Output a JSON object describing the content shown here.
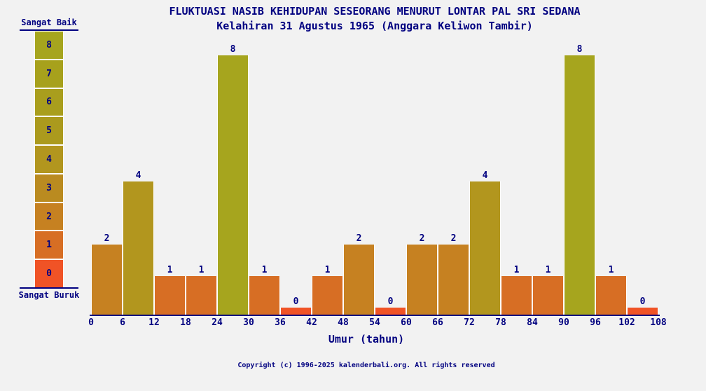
{
  "colors": {
    "background": "#f2f2f2",
    "text": "#000080",
    "axis": "#000080",
    "bar_gap": "#ffffff"
  },
  "header": {
    "title": "FLUKTUASI NASIB KEHIDUPAN SESEORANG MENURUT LONTAR PAL SRI SEDANA",
    "subtitle": "Kelahiran 31 Agustus 1965 (Anggara Keliwon Tambir)"
  },
  "legend": {
    "top_label": "Sangat Baik",
    "bottom_label": "Sangat Buruk",
    "levels": [
      8,
      7,
      6,
      5,
      4,
      3,
      2,
      1,
      0
    ]
  },
  "chart_data": {
    "type": "bar",
    "title": "FLUKTUASI NASIB KEHIDUPAN SESEORANG MENURUT LONTAR PAL SRI SEDANA",
    "subtitle": "Kelahiran 31 Agustus 1965 (Anggara Keliwon Tambir)",
    "xlabel": "Umur (tahun)",
    "ylabel": "",
    "ylim": [
      0,
      8
    ],
    "grid": false,
    "legend_position": "left",
    "x_ticks": [
      0,
      6,
      12,
      18,
      24,
      30,
      36,
      42,
      48,
      54,
      60,
      66,
      72,
      78,
      84,
      90,
      96,
      102,
      108
    ],
    "bin_width_years": 6,
    "categories": [
      "0-6",
      "6-12",
      "12-18",
      "18-24",
      "24-30",
      "30-36",
      "36-42",
      "42-48",
      "48-54",
      "54-60",
      "60-66",
      "66-72",
      "72-78",
      "78-84",
      "84-90",
      "90-96",
      "96-102",
      "102-108"
    ],
    "values": [
      2,
      4,
      1,
      1,
      8,
      1,
      0,
      1,
      2,
      0,
      2,
      2,
      4,
      1,
      1,
      8,
      1,
      0
    ],
    "bar_color_by_value": {
      "8": "#a6a51e",
      "7": "#a7a11c",
      "6": "#a99e1d",
      "5": "#ab9a1d",
      "4": "#b2961e",
      "3": "#ba8b20",
      "2": "#c68121",
      "1": "#d76e24",
      "0": "#f05326"
    }
  },
  "footer": {
    "copyright": "Copyright (c) 1996-2025 kalenderbali.org. All rights reserved"
  }
}
